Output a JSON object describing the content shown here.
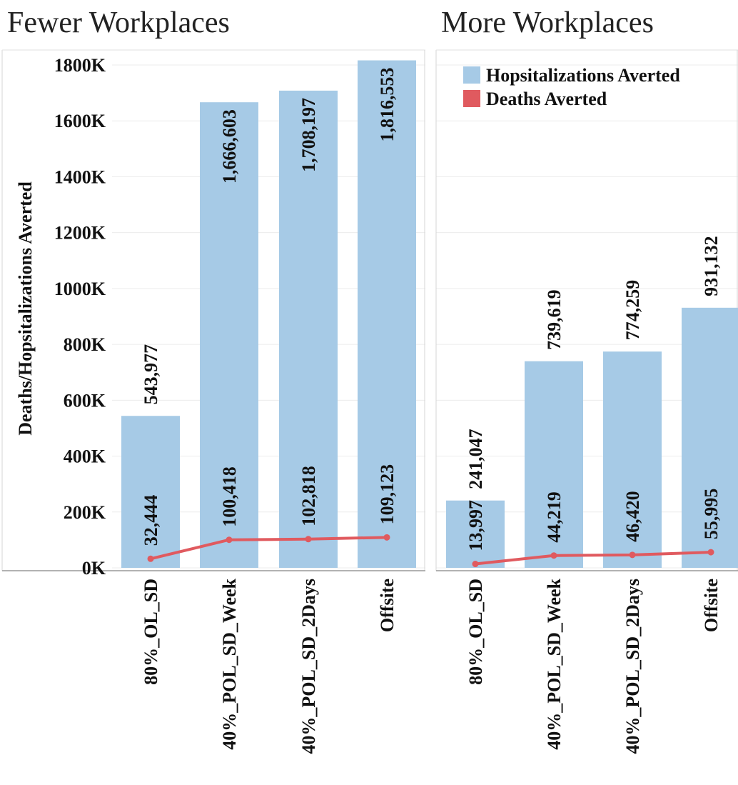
{
  "chart_data": {
    "type": "bar",
    "ylabel": "Deaths/Hopsitalizations Averted",
    "yticks": [
      "0K",
      "200K",
      "400K",
      "600K",
      "800K",
      "1000K",
      "1200K",
      "1400K",
      "1600K",
      "1800K"
    ],
    "ylim": [
      0,
      1850000
    ],
    "grid": true,
    "legend": {
      "position": "top-right",
      "items": [
        {
          "name": "Hopsitalizations Averted",
          "color": "#a6cae6"
        },
        {
          "name": "Deaths Averted",
          "color": "#e05a5f"
        }
      ]
    },
    "panels": [
      {
        "title": "Fewer Workplaces",
        "categories": [
          "80%_OL_SD",
          "40%_POL_SD_Week",
          "40%_POL_SD_2Days",
          "Offsite"
        ],
        "series": [
          {
            "name": "Hopsitalizations Averted",
            "type": "bar",
            "values": [
              543977,
              1666603,
              1708197,
              1816553
            ],
            "labels": [
              "543,977",
              "1,666,603",
              "1,708,197",
              "1,816,553"
            ]
          },
          {
            "name": "Deaths Averted",
            "type": "line",
            "values": [
              32444,
              100418,
              102818,
              109123
            ],
            "labels": [
              "32,444",
              "100,418",
              "102,818",
              "109,123"
            ]
          }
        ]
      },
      {
        "title": "More Workplaces",
        "categories": [
          "80%_OL_SD",
          "40%_POL_SD_Week",
          "40%_POL_SD_2Days",
          "Offsite"
        ],
        "series": [
          {
            "name": "Hopsitalizations Averted",
            "type": "bar",
            "values": [
              241047,
              739619,
              774259,
              931132
            ],
            "labels": [
              "241,047",
              "739,619",
              "774,259",
              "931,132"
            ]
          },
          {
            "name": "Deaths Averted",
            "type": "line",
            "values": [
              13997,
              44219,
              46420,
              55995
            ],
            "labels": [
              "13,997",
              "44,219",
              "46,420",
              "55,995"
            ]
          }
        ]
      }
    ]
  }
}
